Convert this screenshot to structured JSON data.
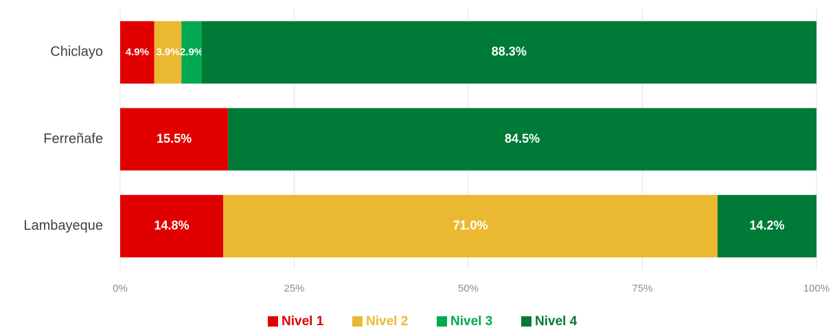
{
  "chart_data": {
    "type": "stacked-bar-horizontal",
    "categories": [
      "Chiclayo",
      "Ferreñafe",
      "Lambayeque"
    ],
    "series": [
      {
        "name": "Nivel 1",
        "color": "#e00000",
        "values": [
          4.9,
          15.5,
          14.8
        ],
        "value_labels": [
          "4.9%",
          "15.5%",
          "14.8%"
        ]
      },
      {
        "name": "Nivel 2",
        "color": "#ebb831",
        "values": [
          3.9,
          0,
          71.0
        ],
        "value_labels": [
          "3.9%",
          null,
          "71.0%"
        ]
      },
      {
        "name": "Nivel 3",
        "color": "#00a84f",
        "values": [
          2.9,
          0,
          0
        ],
        "value_labels": [
          "2.9%",
          null,
          null
        ]
      },
      {
        "name": "Nivel 4",
        "color": "#007a37",
        "values": [
          88.3,
          84.5,
          14.2
        ],
        "value_labels": [
          "88.3%",
          "84.5%",
          "14.2%"
        ]
      }
    ],
    "xlim": [
      0,
      100
    ],
    "xticks": [
      {
        "value": 0,
        "label": "0%"
      },
      {
        "value": 25,
        "label": "25%"
      },
      {
        "value": 50,
        "label": "50%"
      },
      {
        "value": 75,
        "label": "75%"
      },
      {
        "value": 100,
        "label": "100%"
      }
    ],
    "grid": true,
    "legend": "bottom"
  }
}
